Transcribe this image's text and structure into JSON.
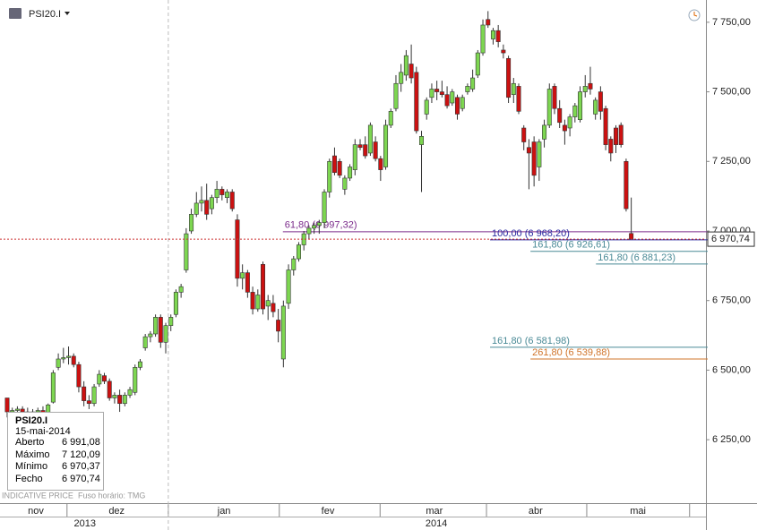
{
  "chart_data": {
    "type": "candlestick",
    "title": "PSI20.I",
    "open": [
      6400,
      6350,
      6355,
      6360,
      6350,
      6345,
      6350,
      6355,
      6345,
      6385,
      6510,
      6540,
      6545,
      6550,
      6520,
      6440,
      6390,
      6380,
      6450,
      6480,
      6460,
      6400,
      6410,
      6380,
      6410,
      6420,
      6510,
      6580,
      6620,
      6630,
      6690,
      6600,
      6660,
      6700,
      6780,
      6860,
      7000,
      7060,
      7100,
      7110,
      7080,
      7120,
      7150,
      7120,
      7140,
      7040,
      6830,
      6850,
      6780,
      6720,
      6880,
      6730,
      6740,
      6680,
      6540,
      6740,
      6860,
      6900,
      6950,
      6990,
      7010,
      7020,
      7030,
      7140,
      7270,
      7250,
      7150,
      7190,
      7220,
      7310,
      7310,
      7280,
      7320,
      7260,
      7230,
      7380,
      7440,
      7530,
      7560,
      7600,
      7570,
      7310,
      7420,
      7480,
      7510,
      7500,
      7490,
      7460,
      7480,
      7440,
      7500,
      7510,
      7560,
      7640,
      7760,
      7690,
      7720,
      7650,
      7620,
      7490,
      7520,
      7370,
      7300,
      7320,
      7230,
      7330,
      7380,
      7520,
      7440,
      7380,
      7370,
      7410,
      7400,
      7500,
      7530,
      7420,
      7500,
      7440,
      7330,
      7370,
      7380,
      7250,
      6991.08
    ],
    "high": [
      6400,
      6365,
      6370,
      6370,
      6365,
      6360,
      6365,
      6370,
      6380,
      6500,
      6560,
      6580,
      6585,
      6560,
      6530,
      6460,
      6410,
      6450,
      6500,
      6490,
      6470,
      6420,
      6430,
      6420,
      6440,
      6520,
      6540,
      6630,
      6640,
      6700,
      6700,
      6670,
      6700,
      6790,
      6810,
      7010,
      7080,
      7140,
      7160,
      7170,
      7130,
      7180,
      7160,
      7150,
      7150,
      7060,
      6880,
      6860,
      6800,
      6790,
      6890,
      6770,
      6770,
      6720,
      6750,
      6880,
      6910,
      6960,
      7000,
      7020,
      7030,
      7040,
      7150,
      7260,
      7300,
      7260,
      7200,
      7240,
      7330,
      7330,
      7340,
      7390,
      7340,
      7270,
      7400,
      7440,
      7560,
      7600,
      7650,
      7670,
      7590,
      7360,
      7480,
      7530,
      7540,
      7540,
      7520,
      7510,
      7490,
      7490,
      7530,
      7580,
      7650,
      7760,
      7790,
      7730,
      7740,
      7670,
      7630,
      7550,
      7530,
      7380,
      7330,
      7340,
      7330,
      7400,
      7530,
      7530,
      7470,
      7400,
      7420,
      7460,
      7520,
      7560,
      7590,
      7480,
      7520,
      7450,
      7340,
      7380,
      7390,
      7260,
      7120.09
    ],
    "low": [
      6330,
      6330,
      6340,
      6345,
      6335,
      6330,
      6340,
      6340,
      6340,
      6380,
      6500,
      6525,
      6520,
      6510,
      6420,
      6370,
      6360,
      6370,
      6440,
      6450,
      6390,
      6380,
      6350,
      6370,
      6400,
      6410,
      6500,
      6570,
      6600,
      6620,
      6580,
      6560,
      6640,
      6690,
      6760,
      6850,
      6990,
      7050,
      7070,
      7040,
      7060,
      7100,
      7110,
      7100,
      7070,
      6800,
      6790,
      6760,
      6700,
      6710,
      6700,
      6680,
      6690,
      6600,
      6510,
      6720,
      6840,
      6890,
      6930,
      6970,
      6990,
      6990,
      7010,
      7120,
      7200,
      7190,
      7130,
      7180,
      7200,
      7290,
      7260,
      7270,
      7250,
      7180,
      7220,
      7370,
      7430,
      7500,
      7540,
      7530,
      7350,
      7140,
      7400,
      7460,
      7470,
      7480,
      7440,
      7450,
      7400,
      7430,
      7490,
      7500,
      7550,
      7630,
      7730,
      7670,
      7660,
      7620,
      7460,
      7460,
      7420,
      7290,
      7150,
      7160,
      7180,
      7300,
      7370,
      7420,
      7370,
      7310,
      7340,
      7390,
      7390,
      7480,
      7490,
      7400,
      7400,
      7290,
      7250,
      7280,
      7300,
      7070,
      6970.37
    ],
    "close": [
      6350,
      6355,
      6360,
      6350,
      6345,
      6350,
      6355,
      6345,
      6375,
      6490,
      6540,
      6545,
      6550,
      6520,
      6440,
      6390,
      6380,
      6440,
      6485,
      6460,
      6400,
      6410,
      6380,
      6410,
      6430,
      6510,
      6530,
      6620,
      6630,
      6690,
      6600,
      6660,
      6690,
      6780,
      6800,
      6990,
      7060,
      7100,
      7110,
      7060,
      7120,
      7150,
      7130,
      7140,
      7080,
      6830,
      6850,
      6780,
      6720,
      6770,
      6720,
      6750,
      6710,
      6640,
      6730,
      6860,
      6900,
      6950,
      6990,
      7010,
      7020,
      7030,
      7140,
      7250,
      7210,
      7200,
      7190,
      7230,
      7310,
      7300,
      7270,
      7380,
      7260,
      7220,
      7380,
      7430,
      7530,
      7570,
      7630,
      7550,
      7360,
      7340,
      7470,
      7510,
      7500,
      7490,
      7450,
      7500,
      7420,
      7480,
      7520,
      7550,
      7640,
      7740,
      7740,
      7720,
      7680,
      7640,
      7480,
      7530,
      7430,
      7320,
      7280,
      7200,
      7320,
      7380,
      7510,
      7440,
      7390,
      7360,
      7410,
      7450,
      7500,
      7520,
      7510,
      7470,
      7430,
      7310,
      7280,
      7310,
      7310,
      7080,
      6970.74
    ],
    "up_color": "#7dd651",
    "down_color": "#cc1111",
    "xlim": [
      -1.4,
      136.6
    ],
    "ylim": [
      6022,
      7830
    ],
    "yticks": [
      {
        "value": 6250,
        "label": "6 250,00"
      },
      {
        "value": 6500,
        "label": "6 500,00"
      },
      {
        "value": 6750,
        "label": "6 750,00"
      },
      {
        "value": 7000,
        "label": "7 000,00"
      },
      {
        "value": 7250,
        "label": "7 250,00"
      },
      {
        "value": 7500,
        "label": "7 500,00"
      },
      {
        "value": 7750,
        "label": "7 750,00"
      }
    ],
    "xticks": [
      {
        "value": 5.6,
        "label": "nov"
      },
      {
        "value": 21.4,
        "label": "dez"
      },
      {
        "value": 42.4,
        "label": "jan"
      },
      {
        "value": 62.7,
        "label": "fev"
      },
      {
        "value": 83.5,
        "label": "mar"
      },
      {
        "value": 103.3,
        "label": "abr"
      },
      {
        "value": 123.3,
        "label": "mai"
      }
    ],
    "xgrid": [
      11.7,
      31.5,
      53.2,
      72.9,
      93.7,
      113.3,
      133.4
    ],
    "years": [
      {
        "value": 15.2,
        "label": "2013"
      },
      {
        "value": 83.9,
        "label": "2014"
      }
    ],
    "year_divider": 31.5,
    "last_price": {
      "value": 6970.74,
      "label": "6 970,74"
    },
    "levels": [
      {
        "value": 6997.32,
        "label": "61,80 (6 997,32)",
        "start": 53.9,
        "color": "#7a2a8a"
      },
      {
        "value": 6968.2,
        "label": "100,00 (6 968,20)",
        "start": 94.4,
        "color": "#2a2aa0"
      },
      {
        "value": 6926.61,
        "label": "161,80 (6 926,61)",
        "start": 102.3,
        "color": "#4a8a96"
      },
      {
        "value": 6881.23,
        "label": "161,80 (6 881,23)",
        "start": 115.1,
        "color": "#4a8a96"
      },
      {
        "value": 6581.98,
        "label": "161,80 (6 581,98)",
        "start": 94.4,
        "color": "#4a8a96"
      },
      {
        "value": 6539.88,
        "label": "261,80 (6 539,88)",
        "start": 102.3,
        "color": "#d0742a"
      }
    ]
  },
  "info": {
    "symbol": "PSI20.I",
    "date": "15-mai-2014",
    "rows": [
      [
        "Aberto",
        "6 991,08"
      ],
      [
        "Máximo",
        "7 120,09"
      ],
      [
        "Mínimo",
        "6 970,37"
      ],
      [
        "Fecho",
        "6 970,74"
      ]
    ]
  },
  "footer": {
    "source": "INDICATIVE PRICE",
    "timezone": "Fuso horário: TMG"
  }
}
